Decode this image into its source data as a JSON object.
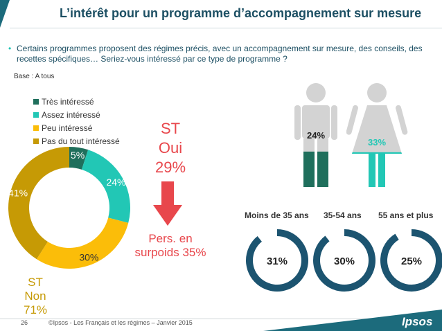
{
  "header": {
    "title": "L’intérêt pour un programme d’accompagnement sur mesure"
  },
  "bullet": "Certains programmes proposent des régimes précis, avec un accompagnement sur mesure, des conseils, des recettes spécifiques… Seriez-vous intéressé par ce type de programme ?",
  "base": "Base : A tous",
  "colors": {
    "tres": "#1f6f5c",
    "assez": "#22c7b5",
    "peu": "#fbbd09",
    "pas": "#c69a05",
    "accent_red": "#e8474c",
    "gauge": "#1c5470",
    "figure_grey": "#d3d3d3"
  },
  "chart_data": [
    {
      "type": "pie",
      "categories": [
        "Très intéressé",
        "Assez intéressé",
        "Peu intéressé",
        "Pas du tout intéressé"
      ],
      "values": [
        5,
        24,
        30,
        41
      ],
      "value_labels": [
        "5%",
        "24%",
        "30%",
        "41%"
      ],
      "legend_placement": "top-left"
    },
    {
      "type": "bar",
      "categories": [
        "Homme",
        "Femme"
      ],
      "values": [
        24,
        33
      ],
      "value_labels": [
        "24%",
        "33%"
      ]
    },
    {
      "type": "pie",
      "categories": [
        "Moins de 35 ans",
        "35-54 ans",
        "55 ans et plus"
      ],
      "values": [
        31,
        30,
        25
      ],
      "value_labels": [
        "31%",
        "30%",
        "25%"
      ]
    }
  ],
  "callouts": {
    "st_oui": [
      "ST",
      "Oui",
      "29%"
    ],
    "st_non": [
      "ST",
      "Non",
      "71%"
    ],
    "pers": [
      "Pers. en",
      "surpoids 35%"
    ]
  },
  "footer": {
    "page": "26",
    "text": "©Ipsos - Les Français et les régimes –  Janvier 2015",
    "logo": "Ipsos"
  }
}
